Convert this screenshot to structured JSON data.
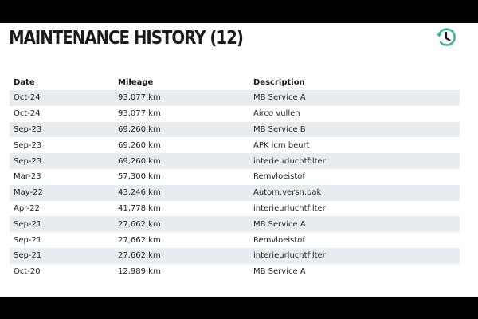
{
  "title": "MAINTENANCE HISTORY (12)",
  "icon": "history-icon",
  "accent_color": "#3bb78f",
  "columns": {
    "date": "Date",
    "mileage": "Mileage",
    "description": "Description"
  },
  "rows": [
    {
      "date": "Oct-24",
      "mileage": "93,077 km",
      "description": "MB Service A"
    },
    {
      "date": "Oct-24",
      "mileage": "93,077 km",
      "description": "Airco vullen"
    },
    {
      "date": "Sep-23",
      "mileage": "69,260 km",
      "description": "MB Service B"
    },
    {
      "date": "Sep-23",
      "mileage": "69,260 km",
      "description": "APK icm beurt"
    },
    {
      "date": "Sep-23",
      "mileage": "69,260 km",
      "description": "interieurluchtfilter"
    },
    {
      "date": "Mar-23",
      "mileage": "57,300 km",
      "description": "Remvloeistof"
    },
    {
      "date": "May-22",
      "mileage": "43,246 km",
      "description": "Autom.versn.bak"
    },
    {
      "date": "Apr-22",
      "mileage": "41,778 km",
      "description": "interieurluchtfilter"
    },
    {
      "date": "Sep-21",
      "mileage": "27,662 km",
      "description": "MB Service A"
    },
    {
      "date": "Sep-21",
      "mileage": "27,662 km",
      "description": "Remvloeistof"
    },
    {
      "date": "Sep-21",
      "mileage": "27,662 km",
      "description": "interieurluchtfilter"
    },
    {
      "date": "Oct-20",
      "mileage": "12,989 km",
      "description": "MB Service A"
    }
  ]
}
